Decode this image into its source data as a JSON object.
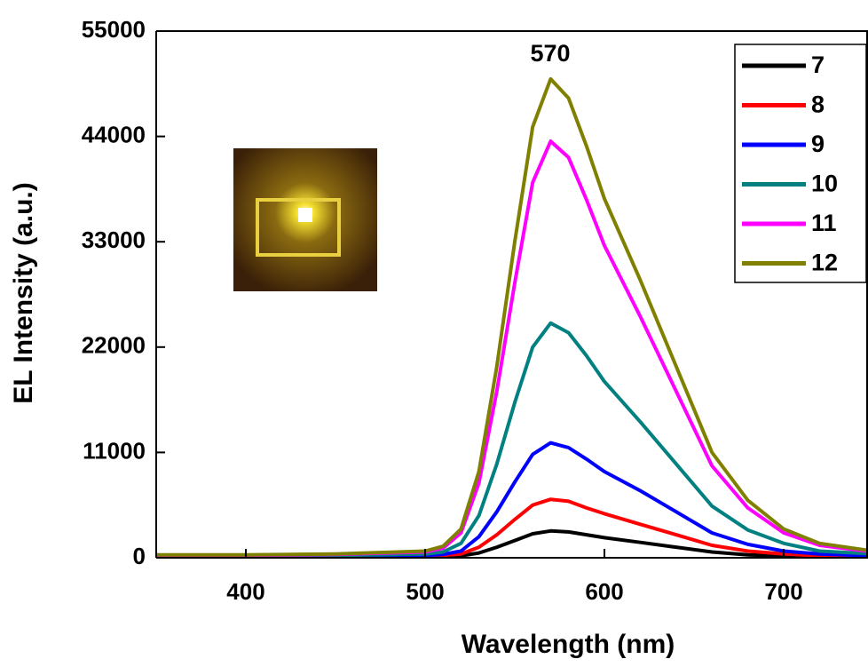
{
  "chart_data": {
    "type": "line",
    "xlabel": "Wavelength (nm)",
    "ylabel": "EL Intensity (a.u.)",
    "annotation": "570",
    "x": [
      350,
      400,
      450,
      500,
      510,
      520,
      530,
      540,
      550,
      560,
      570,
      580,
      590,
      600,
      620,
      640,
      660,
      680,
      700,
      720,
      750
    ],
    "series": [
      {
        "name": "7",
        "color": "#000000",
        "values": [
          100,
          100,
          100,
          150,
          150,
          200,
          500,
          1100,
          1800,
          2500,
          2800,
          2700,
          2400,
          2100,
          1600,
          1100,
          600,
          300,
          200,
          100,
          100
        ]
      },
      {
        "name": "8",
        "color": "#ff0000",
        "values": [
          100,
          100,
          150,
          200,
          250,
          400,
          1100,
          2400,
          4000,
          5500,
          6100,
          5900,
          5200,
          4600,
          3500,
          2400,
          1300,
          700,
          400,
          200,
          100
        ]
      },
      {
        "name": "9",
        "color": "#0000ff",
        "values": [
          150,
          150,
          200,
          250,
          350,
          700,
          2200,
          4800,
          7900,
          10800,
          12000,
          11500,
          10300,
          9000,
          7000,
          4800,
          2600,
          1400,
          700,
          400,
          200
        ]
      },
      {
        "name": "10",
        "color": "#008080",
        "values": [
          200,
          200,
          250,
          400,
          600,
          1500,
          4400,
          9800,
          16200,
          22000,
          24500,
          23500,
          21100,
          18400,
          14200,
          9800,
          5400,
          2900,
          1500,
          700,
          400
        ]
      },
      {
        "name": "11",
        "color": "#ff00ff",
        "values": [
          250,
          250,
          350,
          600,
          1000,
          2600,
          7800,
          17400,
          28700,
          39200,
          43500,
          41800,
          37400,
          32600,
          25200,
          17400,
          9600,
          5200,
          2600,
          1300,
          600
        ]
      },
      {
        "name": "12",
        "color": "#808000",
        "values": [
          300,
          300,
          400,
          700,
          1200,
          3000,
          9000,
          20000,
          33000,
          45000,
          50000,
          48000,
          43000,
          37500,
          29000,
          20000,
          11000,
          6000,
          3000,
          1500,
          700
        ]
      }
    ],
    "xlim": [
      350,
      747
    ],
    "xticks": [
      400,
      500,
      600,
      700
    ],
    "ylim": [
      0,
      55000
    ],
    "yticks": [
      0,
      11000,
      22000,
      33000,
      44000,
      55000
    ],
    "legend": "upper right"
  }
}
